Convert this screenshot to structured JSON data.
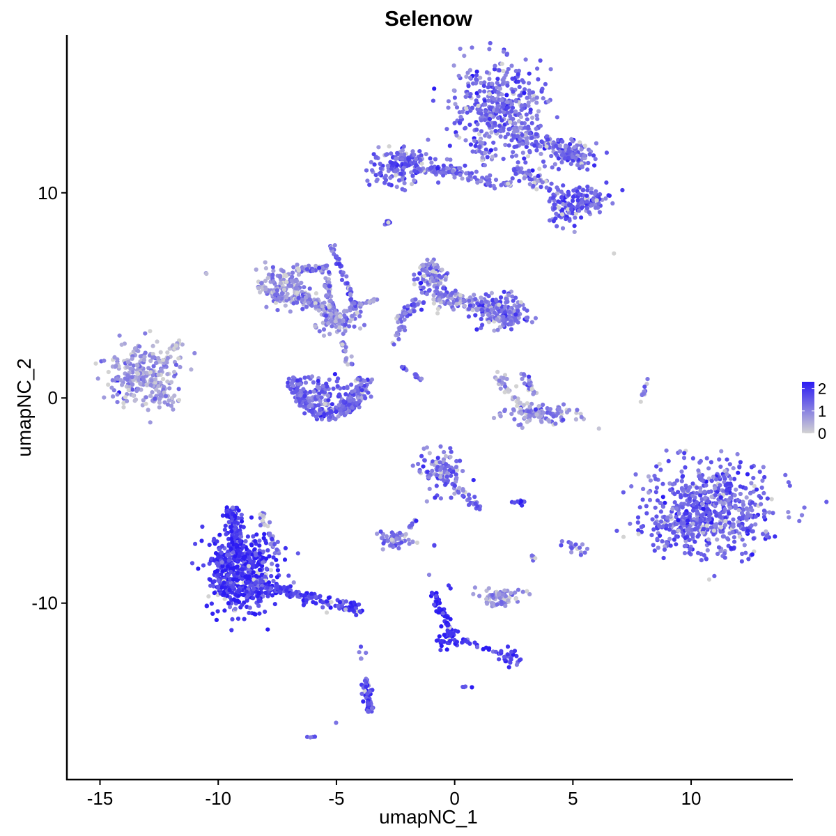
{
  "chart_data": {
    "type": "scatter",
    "title": "Selenow",
    "xlabel": "umapNC_1",
    "ylabel": "umapNC_2",
    "xlim": [
      -16.4,
      14.3
    ],
    "ylim": [
      -18.6,
      17.7
    ],
    "xticks": [
      -15,
      -10,
      -5,
      0,
      5,
      10
    ],
    "xtick_labels": [
      "-15",
      "-10",
      "-5",
      "0",
      "5",
      "10"
    ],
    "yticks": [
      -10,
      0,
      10
    ],
    "ytick_labels": [
      "-10",
      "0",
      "10"
    ],
    "grid": false,
    "legend": {
      "placement": "right",
      "type": "colorbar",
      "ticks": [
        0,
        1,
        2
      ],
      "tick_labels": [
        "0",
        "1",
        "2"
      ],
      "range": [
        0,
        2.3
      ]
    },
    "color_scale": {
      "low": "#d3d3d3",
      "high": "#2b1bf3"
    },
    "clusters": [
      {
        "shape": "blob",
        "cx": 1.8,
        "cy": 14.0,
        "sx": 1.0,
        "sy": 1.2,
        "n": 420,
        "expr": 1.35
      },
      {
        "shape": "segment",
        "x0": 2.5,
        "y0": 13.0,
        "x1": 5.5,
        "y1": 11.8,
        "width": 0.45,
        "n": 110,
        "expr": 1.3
      },
      {
        "shape": "blob",
        "cx": 5.0,
        "cy": 11.8,
        "sx": 0.55,
        "sy": 0.35,
        "n": 70,
        "expr": 1.4
      },
      {
        "shape": "segment",
        "x0": 2.6,
        "y0": 11.2,
        "x1": 4.6,
        "y1": 9.6,
        "width": 0.4,
        "n": 70,
        "expr": 1.25
      },
      {
        "shape": "blob",
        "cx": 4.6,
        "cy": 9.1,
        "sx": 0.35,
        "sy": 0.35,
        "n": 60,
        "expr": 1.5
      },
      {
        "shape": "blob",
        "cx": 5.6,
        "cy": 9.7,
        "sx": 0.5,
        "sy": 0.35,
        "n": 100,
        "expr": 1.45
      },
      {
        "shape": "blob",
        "cx": -2.4,
        "cy": 11.3,
        "sx": 0.65,
        "sy": 0.45,
        "n": 150,
        "expr": 1.45
      },
      {
        "shape": "segment",
        "x0": -1.8,
        "y0": 11.2,
        "x1": 0.4,
        "y1": 11.0,
        "width": 0.18,
        "n": 60,
        "expr": 1.4
      },
      {
        "shape": "segment",
        "x0": 0.0,
        "y0": 11.0,
        "x1": 2.4,
        "y1": 10.3,
        "width": 0.3,
        "n": 45,
        "expr": 1.2
      },
      {
        "shape": "segment",
        "x0": 1.1,
        "y0": 12.7,
        "x1": 1.2,
        "y1": 11.3,
        "width": 0.12,
        "n": 14,
        "expr": 1.0
      },
      {
        "shape": "segment",
        "x0": -3.0,
        "y0": 8.4,
        "x1": -2.7,
        "y1": 8.7,
        "width": 0.08,
        "n": 8,
        "expr": 1.4
      },
      {
        "shape": "blob",
        "cx": -7.3,
        "cy": 5.4,
        "sx": 0.55,
        "sy": 0.45,
        "n": 150,
        "expr": 0.85
      },
      {
        "shape": "segment",
        "x0": -6.8,
        "y0": 5.1,
        "x1": -5.0,
        "y1": 4.0,
        "width": 0.35,
        "n": 100,
        "expr": 0.9
      },
      {
        "shape": "blob",
        "cx": -4.9,
        "cy": 3.7,
        "sx": 0.5,
        "sy": 0.3,
        "n": 70,
        "expr": 0.95
      },
      {
        "shape": "segment",
        "x0": -6.7,
        "y0": 6.3,
        "x1": -5.4,
        "y1": 6.3,
        "width": 0.2,
        "n": 40,
        "expr": 0.9
      },
      {
        "shape": "segment",
        "x0": -5.4,
        "y0": 6.2,
        "x1": -5.2,
        "y1": 4.4,
        "width": 0.15,
        "n": 30,
        "expr": 0.9
      },
      {
        "shape": "segment",
        "x0": -4.7,
        "y0": 4.2,
        "x1": -3.2,
        "y1": 4.9,
        "width": 0.15,
        "n": 26,
        "expr": 0.7
      },
      {
        "shape": "segment",
        "x0": -5.2,
        "y0": 7.6,
        "x1": -4.4,
        "y1": 5.0,
        "width": 0.12,
        "n": 34,
        "expr": 1.3
      },
      {
        "shape": "segment",
        "x0": -4.6,
        "y0": 5.4,
        "x1": -4.0,
        "y1": 4.0,
        "width": 0.12,
        "n": 14,
        "expr": 1.2
      },
      {
        "shape": "arc",
        "cx": -5.3,
        "cy": 1.0,
        "rx": 1.45,
        "ry": 1.75,
        "start": 3.14,
        "end": 6.28,
        "width": 0.35,
        "n": 260,
        "expr": 1.35
      },
      {
        "shape": "blob",
        "cx": -5.3,
        "cy": 0.3,
        "sx": 0.7,
        "sy": 0.4,
        "n": 80,
        "expr": 1.35
      },
      {
        "shape": "segment",
        "x0": -4.8,
        "y0": 2.7,
        "x1": -4.4,
        "y1": 1.6,
        "width": 0.15,
        "n": 18,
        "expr": 0.9
      },
      {
        "shape": "blob",
        "cx": -1.0,
        "cy": 5.9,
        "sx": 0.35,
        "sy": 0.45,
        "n": 110,
        "expr": 1.1
      },
      {
        "shape": "segment",
        "x0": -0.9,
        "y0": 5.0,
        "x1": 1.4,
        "y1": 4.4,
        "width": 0.45,
        "n": 120,
        "expr": 1.0
      },
      {
        "shape": "blob",
        "cx": 1.9,
        "cy": 4.3,
        "sx": 0.55,
        "sy": 0.4,
        "n": 110,
        "expr": 1.2
      },
      {
        "shape": "blob",
        "cx": 2.3,
        "cy": 4.0,
        "sx": 0.45,
        "sy": 0.3,
        "n": 60,
        "expr": 1.2
      },
      {
        "shape": "segment",
        "x0": -1.4,
        "y0": 4.8,
        "x1": -2.4,
        "y1": 3.7,
        "width": 0.3,
        "n": 40,
        "expr": 1.15
      },
      {
        "shape": "segment",
        "x0": -2.2,
        "y0": 3.5,
        "x1": -2.6,
        "y1": 2.6,
        "width": 0.15,
        "n": 16,
        "expr": 1.0
      },
      {
        "shape": "segment",
        "x0": -2.3,
        "y0": 1.6,
        "x1": -1.3,
        "y1": 0.8,
        "width": 0.08,
        "n": 14,
        "expr": 1.2
      },
      {
        "shape": "blob",
        "cx": 3.6,
        "cy": -0.8,
        "sx": 0.8,
        "sy": 0.3,
        "n": 110,
        "expr": 0.85
      },
      {
        "shape": "segment",
        "x0": 2.8,
        "y0": 1.3,
        "x1": 3.4,
        "y1": 0.1,
        "width": 0.18,
        "n": 22,
        "expr": 1.1
      },
      {
        "shape": "segment",
        "x0": 1.7,
        "y0": 1.2,
        "x1": 2.8,
        "y1": -0.3,
        "width": 0.3,
        "n": 30,
        "expr": 0.4
      },
      {
        "shape": "segment",
        "x0": 8.2,
        "y0": 1.0,
        "x1": 7.8,
        "y1": -0.3,
        "width": 0.08,
        "n": 12,
        "expr": 0.9
      },
      {
        "shape": "blob",
        "cx": -13.2,
        "cy": 1.1,
        "sx": 0.75,
        "sy": 0.7,
        "n": 260,
        "expr": 0.75
      },
      {
        "shape": "segment",
        "x0": -12.4,
        "y0": 1.7,
        "x1": -11.6,
        "y1": 2.8,
        "width": 0.18,
        "n": 28,
        "expr": 0.3
      },
      {
        "shape": "blob",
        "cx": -12.3,
        "cy": 0.0,
        "sx": 0.3,
        "sy": 0.2,
        "n": 24,
        "expr": 0.9
      },
      {
        "shape": "blob",
        "cx": 10.8,
        "cy": -5.3,
        "sx": 1.3,
        "sy": 1.2,
        "n": 560,
        "expr": 1.4
      },
      {
        "shape": "blob",
        "cx": 9.6,
        "cy": -6.3,
        "sx": 0.8,
        "sy": 0.6,
        "n": 110,
        "expr": 1.4
      },
      {
        "shape": "blob",
        "cx": -9.0,
        "cy": -8.6,
        "sx": 0.75,
        "sy": 0.9,
        "n": 560,
        "expr": 2.0
      },
      {
        "shape": "segment",
        "x0": -9.4,
        "y0": -5.3,
        "x1": -9.2,
        "y1": -7.8,
        "width": 0.35,
        "n": 120,
        "expr": 1.95
      },
      {
        "shape": "segment",
        "x0": -8.6,
        "y0": -9.0,
        "x1": -3.9,
        "y1": -10.4,
        "width": 0.3,
        "n": 150,
        "expr": 1.75
      },
      {
        "shape": "segment",
        "x0": -8.2,
        "y0": -5.6,
        "x1": -7.4,
        "y1": -7.6,
        "width": 0.18,
        "n": 30,
        "expr": 1.2
      },
      {
        "shape": "blob",
        "cx": -0.6,
        "cy": -3.6,
        "sx": 0.45,
        "sy": 0.55,
        "n": 110,
        "expr": 1.3
      },
      {
        "shape": "segment",
        "x0": 0.1,
        "y0": -4.4,
        "x1": 1.1,
        "y1": -5.4,
        "width": 0.2,
        "n": 25,
        "expr": 1.2
      },
      {
        "shape": "blob",
        "cx": -2.5,
        "cy": -6.9,
        "sx": 0.35,
        "sy": 0.2,
        "n": 60,
        "expr": 1.0
      },
      {
        "shape": "segment",
        "x0": -2.0,
        "y0": -6.5,
        "x1": -1.6,
        "y1": -5.9,
        "width": 0.08,
        "n": 8,
        "expr": 1.2
      },
      {
        "shape": "blob",
        "cx": 2.0,
        "cy": -9.7,
        "sx": 0.45,
        "sy": 0.2,
        "n": 80,
        "expr": 0.8
      },
      {
        "shape": "segment",
        "x0": -1.0,
        "y0": -9.3,
        "x1": -0.1,
        "y1": -11.6,
        "width": 0.18,
        "n": 55,
        "expr": 2.2
      },
      {
        "shape": "blob",
        "cx": -0.2,
        "cy": -11.7,
        "sx": 0.25,
        "sy": 0.25,
        "n": 40,
        "expr": 2.2
      },
      {
        "shape": "segment",
        "x0": 0.3,
        "y0": -11.8,
        "x1": 2.0,
        "y1": -12.5,
        "width": 0.12,
        "n": 20,
        "expr": 1.8
      },
      {
        "shape": "blob",
        "cx": 2.3,
        "cy": -12.6,
        "sx": 0.25,
        "sy": 0.2,
        "n": 26,
        "expr": 1.9
      },
      {
        "shape": "segment",
        "x0": -3.8,
        "y0": -13.6,
        "x1": -3.6,
        "y1": -15.3,
        "width": 0.18,
        "n": 55,
        "expr": 1.6
      },
      {
        "shape": "blob",
        "cx": 2.7,
        "cy": -5.1,
        "sx": 0.15,
        "sy": 0.08,
        "n": 10,
        "expr": 2.0
      },
      {
        "shape": "blob",
        "cx": 5.0,
        "cy": -7.3,
        "sx": 0.25,
        "sy": 0.2,
        "n": 16,
        "expr": 1.2
      },
      {
        "shape": "blob",
        "cx": 3.3,
        "cy": -7.7,
        "sx": 0.1,
        "sy": 0.1,
        "n": 5,
        "expr": 1.2
      },
      {
        "shape": "blob",
        "cx": 0.5,
        "cy": -14.1,
        "sx": 0.1,
        "sy": 0.05,
        "n": 4,
        "expr": 1.6
      },
      {
        "shape": "blob",
        "cx": -6.1,
        "cy": -16.5,
        "sx": 0.1,
        "sy": 0.05,
        "n": 4,
        "expr": 1.5
      },
      {
        "shape": "blob",
        "cx": -5.0,
        "cy": -15.8,
        "sx": 0.05,
        "sy": 0.05,
        "n": 1,
        "expr": 1.3
      },
      {
        "shape": "blob",
        "cx": -3.9,
        "cy": -12.6,
        "sx": 0.1,
        "sy": 0.3,
        "n": 5,
        "expr": 1.3
      },
      {
        "shape": "blob",
        "cx": -0.8,
        "cy": -7.2,
        "sx": 0.05,
        "sy": 0.05,
        "n": 2,
        "expr": 2.1
      },
      {
        "shape": "blob",
        "cx": -0.2,
        "cy": -9.2,
        "sx": 0.05,
        "sy": 0.05,
        "n": 2,
        "expr": 1.7
      },
      {
        "shape": "blob",
        "cx": 6.8,
        "cy": 7.0,
        "sx": 0.05,
        "sy": 0.05,
        "n": 1,
        "expr": 0.3
      },
      {
        "shape": "blob",
        "cx": -10.6,
        "cy": 6.1,
        "sx": 0.05,
        "sy": 0.05,
        "n": 2,
        "expr": 0.8
      },
      {
        "shape": "blob",
        "cx": 5.1,
        "cy": 8.1,
        "sx": 0.05,
        "sy": 0.05,
        "n": 1,
        "expr": 1.2
      },
      {
        "shape": "blob",
        "cx": -1.0,
        "cy": -8.6,
        "sx": 0.05,
        "sy": 0.05,
        "n": 1,
        "expr": 1.2
      }
    ]
  }
}
